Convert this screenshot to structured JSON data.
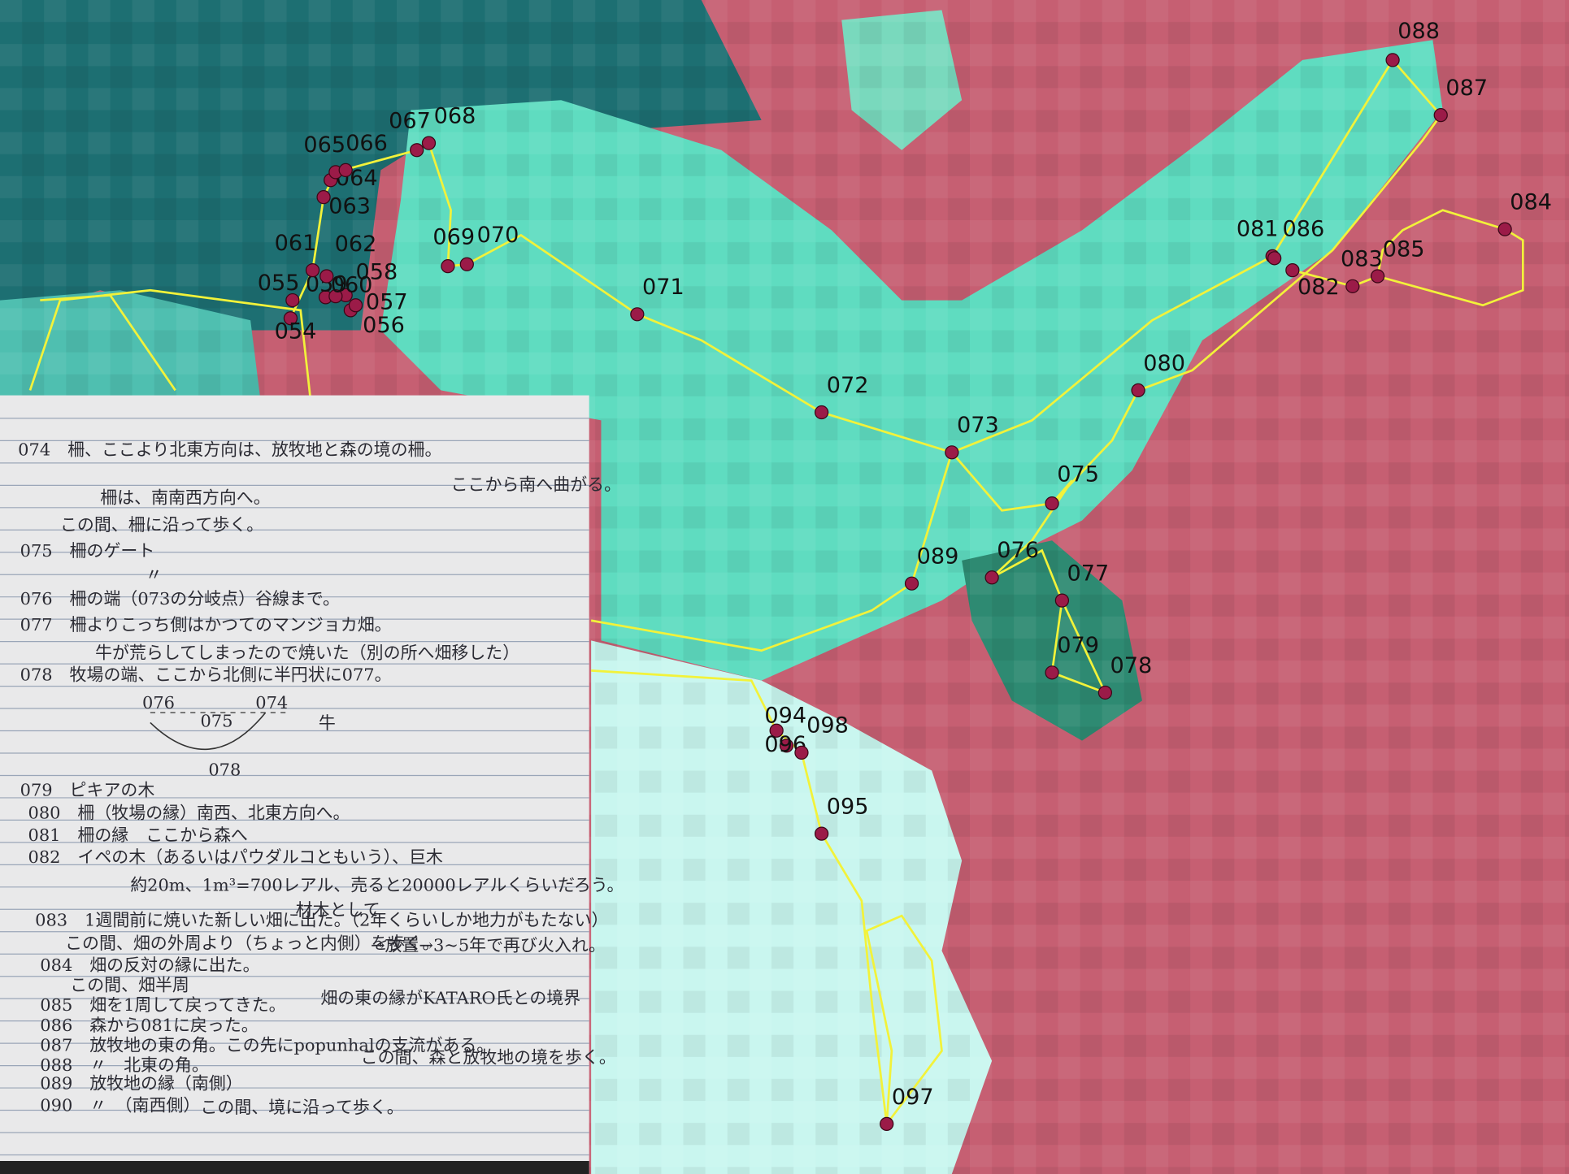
{
  "waypoints": [
    {
      "label": "054"
    },
    {
      "label": "055"
    },
    {
      "label": "056"
    },
    {
      "label": "057"
    },
    {
      "label": "058"
    },
    {
      "label": "059"
    },
    {
      "label": "060"
    },
    {
      "label": "061"
    },
    {
      "label": "062"
    },
    {
      "label": "063"
    },
    {
      "label": "064"
    },
    {
      "label": "065"
    },
    {
      "label": "066"
    },
    {
      "label": "067"
    },
    {
      "label": "068"
    },
    {
      "label": "069"
    },
    {
      "label": "070"
    },
    {
      "label": "071"
    },
    {
      "label": "072"
    },
    {
      "label": "073"
    },
    {
      "label": "075"
    },
    {
      "label": "076"
    },
    {
      "label": "077"
    },
    {
      "label": "078"
    },
    {
      "label": "079"
    },
    {
      "label": "080"
    },
    {
      "label": "081"
    },
    {
      "label": "082"
    },
    {
      "label": "083"
    },
    {
      "label": "084"
    },
    {
      "label": "085"
    },
    {
      "label": "086"
    },
    {
      "label": "087"
    },
    {
      "label": "088"
    },
    {
      "label": "089"
    },
    {
      "label": "094"
    },
    {
      "label": "095"
    },
    {
      "label": "096"
    },
    {
      "label": "097"
    },
    {
      "label": "098"
    }
  ],
  "notebook": {
    "lines": [
      "074　柵、ここより北東方向は、放牧地と森の境の柵。",
      "ここから南へ曲がる。",
      "柵は、南南西方向へ。",
      "この間、柵に沿って歩く。",
      "075　柵のゲート",
      "〃",
      "076　柵の端（073の分岐点）谷線まで。",
      "077　柵よりこっち側はかつてのマンジョカ畑。",
      "牛が荒らしてしまったので焼いた（別の所へ畑移した）",
      "078　牧場の端、ここから北側に半円状に077。",
      "079　ピキアの木",
      "080　柵（牧場の縁）南西、北東方向へ。",
      "081　柵の縁　ここから森へ",
      "082　イペの木（あるいはパウダルコともいう）、巨木",
      "約20m、1m³=700レアル、売ると20000レアルくらいだろう。",
      "材木として",
      "083　1週間前に焼いた新しい畑に出た。（2年くらいしか地力がもたない）",
      "→放置→3~5年で再び火入れ。",
      "この間、畑の外周より（ちょっと内側）を歩く。",
      "084　畑の反対の縁に出た。",
      "この間、畑半周",
      "085　畑を1周して戻ってきた。",
      "畑の東の縁がKATARO氏との境界",
      "086　森から081に戻った。",
      "087　放牧地の東の角。この先にpopunhalの支流がある。",
      "088　〃　北東の角。",
      "この間、森と放牧地の境を歩く。",
      "089　放牧地の縁（南側）",
      "090　〃　（南西側）",
      "この間、境に沿って歩く。"
    ],
    "diagram": [
      "076",
      "075",
      "074",
      "078",
      "牛"
    ]
  }
}
